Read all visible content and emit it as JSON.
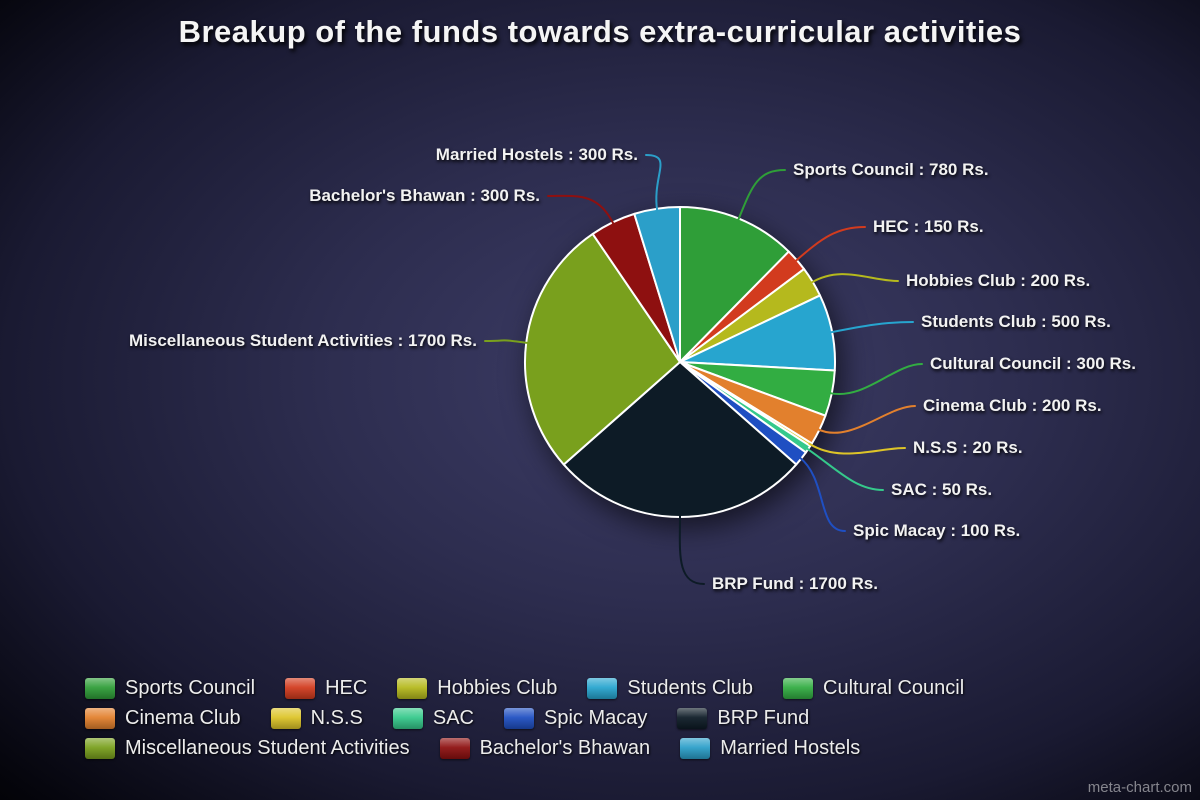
{
  "title": "Breakup of the funds towards extra-curricular activities",
  "watermark": "meta-chart.com",
  "chart_data": {
    "type": "pie",
    "title": "Breakup of the funds towards extra-curricular activities",
    "unit": "Rs.",
    "total": 6300,
    "start_angle_deg": 0,
    "direction": "clockwise",
    "legend_position": "bottom",
    "slices": [
      {
        "label": "Sports Council",
        "value": 780,
        "color": "#2f9e38",
        "callout": "Sports Council : 780 Rs."
      },
      {
        "label": "HEC",
        "value": 150,
        "color": "#d23b1e",
        "callout": "HEC : 150 Rs."
      },
      {
        "label": "Hobbies Club",
        "value": 200,
        "color": "#b5b91d",
        "callout": "Hobbies Club : 200 Rs."
      },
      {
        "label": "Students Club",
        "value": 500,
        "color": "#27a5cf",
        "callout": "Students Club : 500 Rs."
      },
      {
        "label": "Cultural Council",
        "value": 300,
        "color": "#32ad42",
        "callout": "Cultural Council : 300 Rs."
      },
      {
        "label": "Cinema Club",
        "value": 200,
        "color": "#e2802d",
        "callout": "Cinema Club : 200 Rs."
      },
      {
        "label": "N.S.S",
        "value": 20,
        "color": "#ddc428",
        "callout": "N.S.S : 20 Rs."
      },
      {
        "label": "SAC",
        "value": 50,
        "color": "#35c98b",
        "callout": "SAC : 50 Rs."
      },
      {
        "label": "Spic Macay",
        "value": 100,
        "color": "#1f4fc2",
        "callout": "Spic Macay : 100 Rs."
      },
      {
        "label": "BRP Fund",
        "value": 1700,
        "color": "#0d1b26",
        "callout": "BRP Fund : 1700 Rs."
      },
      {
        "label": "Miscellaneous Student Activities",
        "value": 1700,
        "color": "#79a01d",
        "callout": "Miscellaneous Student Activities : 1700 Rs."
      },
      {
        "label": "Bachelor's Bhawan",
        "value": 300,
        "color": "#8e1010",
        "callout": "Bachelor's Bhawan : 300 Rs."
      },
      {
        "label": "Married Hostels",
        "value": 300,
        "color": "#2b9fc9",
        "callout": "Married Hostels : 300 Rs."
      }
    ]
  }
}
